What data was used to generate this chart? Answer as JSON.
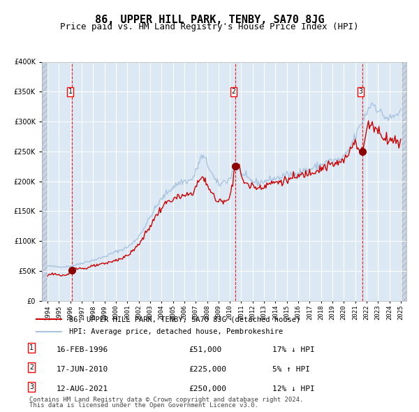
{
  "title": "86, UPPER HILL PARK, TENBY, SA70 8JG",
  "subtitle": "Price paid vs. HM Land Registry's House Price Index (HPI)",
  "legend_line1": "86, UPPER HILL PARK, TENBY, SA70 8JG (detached house)",
  "legend_line2": "HPI: Average price, detached house, Pembrokeshire",
  "transactions": [
    {
      "num": 1,
      "date": "16-FEB-1996",
      "date_dec": 1996.12,
      "price": 51000,
      "pct": "17%",
      "dir": "↓"
    },
    {
      "num": 2,
      "date": "17-JUN-2010",
      "date_dec": 2010.46,
      "price": 225000,
      "pct": "5%",
      "dir": "↑"
    },
    {
      "num": 3,
      "date": "12-AUG-2021",
      "date_dec": 2021.62,
      "price": 250000,
      "pct": "12%",
      "dir": "↓"
    }
  ],
  "footer1": "Contains HM Land Registry data © Crown copyright and database right 2024.",
  "footer2": "This data is licensed under the Open Government Licence v3.0.",
  "hpi_color": "#aac4e0",
  "price_color": "#cc0000",
  "dot_color": "#8b0000",
  "background_color": "#dce9f5",
  "plot_bg": "#dce9f5",
  "grid_color": "#ffffff",
  "dashed_color": "#ff0000",
  "ylim_max": 400000,
  "xlabel_fontsize": 7,
  "hatch_color": "#c0c8d8"
}
